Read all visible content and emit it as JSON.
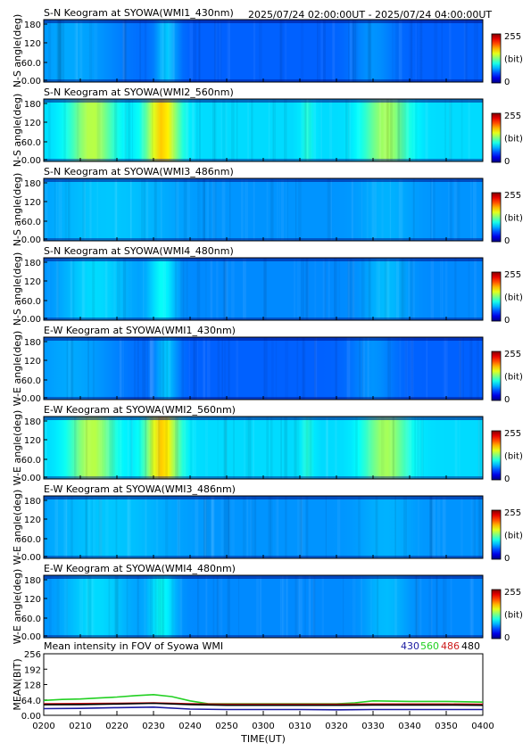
{
  "header": {
    "time_range": "2025/07/24 02:00:00UT - 2025/07/24 04:00:00UT"
  },
  "colorbar": {
    "max_label": "255",
    "unit_label": "(bit)",
    "min_label": "0"
  },
  "keograms": [
    {
      "title": "S-N Keogram at SYOWA(WMI1_430nm)",
      "ylabel": "N-S angle(deg)",
      "channel": "430",
      "yticks": [
        "180",
        "120",
        "60.0",
        "0.00"
      ],
      "base_level": 0.22,
      "bursts": [
        [
          0.06,
          0.3,
          0.07
        ],
        [
          0.28,
          0.06,
          0.1
        ],
        [
          0.75,
          0.12,
          0.05
        ]
      ]
    },
    {
      "title": "S-N Keogram at SYOWA(WMI2_560nm)",
      "ylabel": "N-S angle(deg)",
      "channel": "560",
      "yticks": [
        "180",
        "120",
        "60.0",
        "0.00"
      ],
      "base_level": 0.34,
      "bursts": [
        [
          0.11,
          0.12,
          0.22
        ],
        [
          0.27,
          0.09,
          0.34
        ],
        [
          0.78,
          0.12,
          0.2
        ],
        [
          0.6,
          0.03,
          0.07
        ]
      ]
    },
    {
      "title": "S-N Keogram at SYOWA(WMI3_486nm)",
      "ylabel": "N-S angle(deg)",
      "channel": "486",
      "yticks": [
        "180",
        "120",
        "60.0",
        "0.00"
      ],
      "base_level": 0.27,
      "bursts": [
        [
          0.15,
          0.35,
          0.05
        ],
        [
          0.78,
          0.15,
          0.03
        ]
      ]
    },
    {
      "title": "S-N Keogram at SYOWA(WMI4_480nm)",
      "ylabel": "N-S angle(deg)",
      "channel": "480",
      "yticks": [
        "180",
        "120",
        "60.0",
        "0.00"
      ],
      "base_level": 0.26,
      "bursts": [
        [
          0.12,
          0.2,
          0.08
        ],
        [
          0.27,
          0.07,
          0.12
        ],
        [
          0.78,
          0.12,
          0.05
        ]
      ]
    },
    {
      "title": "E-W Keogram at SYOWA(WMI1_430nm)",
      "ylabel": "W-E angle(deg)",
      "channel": "430",
      "yticks": [
        "180",
        "120",
        "60.0",
        "0.00"
      ],
      "base_level": 0.22,
      "bursts": [
        [
          0.06,
          0.3,
          0.07
        ],
        [
          0.28,
          0.06,
          0.1
        ],
        [
          0.75,
          0.12,
          0.05
        ]
      ]
    },
    {
      "title": "E-W Keogram at SYOWA(WMI2_560nm)",
      "ylabel": "W-E angle(deg)",
      "channel": "560",
      "yticks": [
        "180",
        "120",
        "60.0",
        "0.00"
      ],
      "base_level": 0.34,
      "bursts": [
        [
          0.11,
          0.12,
          0.22
        ],
        [
          0.27,
          0.09,
          0.34
        ],
        [
          0.78,
          0.12,
          0.2
        ],
        [
          0.6,
          0.03,
          0.07
        ]
      ]
    },
    {
      "title": "E-W Keogram at SYOWA(WMI3_486nm)",
      "ylabel": "W-E angle(deg)",
      "channel": "486",
      "yticks": [
        "180",
        "120",
        "60.0",
        "0.00"
      ],
      "base_level": 0.27,
      "bursts": [
        [
          0.15,
          0.35,
          0.05
        ],
        [
          0.78,
          0.15,
          0.03
        ]
      ]
    },
    {
      "title": "E-W Keogram at SYOWA(WMI4_480nm)",
      "ylabel": "W-E angle(deg)",
      "channel": "480",
      "yticks": [
        "180",
        "120",
        "60.0",
        "0.00"
      ],
      "base_level": 0.26,
      "bursts": [
        [
          0.12,
          0.2,
          0.08
        ],
        [
          0.27,
          0.07,
          0.12
        ],
        [
          0.78,
          0.12,
          0.05
        ]
      ]
    }
  ],
  "chart_data": {
    "type": "line",
    "title": "Mean intensity in FOV of Syowa WMI",
    "xlabel": "TIME(UT)",
    "ylabel": "MEAN(BIT)",
    "x_ticks": [
      "0200",
      "0210",
      "0220",
      "0230",
      "0240",
      "0250",
      "0300",
      "0310",
      "0320",
      "0330",
      "0340",
      "0350",
      "0400"
    ],
    "y_ticks": [
      "256",
      "192",
      "128",
      "64.0",
      "0.00"
    ],
    "ylim": [
      0,
      256
    ],
    "xlim_minutes_after_0200": [
      0,
      120
    ],
    "series": [
      {
        "name": "430",
        "color": "#1a1aa0",
        "x": [
          0,
          10,
          20,
          30,
          40,
          50,
          60,
          70,
          80,
          90,
          100,
          110,
          120
        ],
        "y": [
          28,
          29,
          32,
          34,
          26,
          24,
          24,
          24,
          23,
          24,
          24,
          24,
          24
        ]
      },
      {
        "name": "560",
        "color": "#22d022",
        "x": [
          0,
          5,
          10,
          15,
          20,
          25,
          30,
          35,
          40,
          45,
          50,
          60,
          70,
          80,
          85,
          90,
          100,
          110,
          120
        ],
        "y": [
          62,
          66,
          68,
          72,
          76,
          82,
          86,
          78,
          60,
          48,
          48,
          48,
          48,
          48,
          52,
          60,
          58,
          58,
          55
        ]
      },
      {
        "name": "486",
        "color": "#cc1a1a",
        "x": [
          0,
          10,
          20,
          30,
          40,
          50,
          60,
          70,
          80,
          90,
          100,
          110,
          120
        ],
        "y": [
          48,
          49,
          50,
          52,
          48,
          46,
          46,
          46,
          46,
          47,
          47,
          47,
          46
        ]
      },
      {
        "name": "480",
        "color": "#000000",
        "x": [
          0,
          10,
          20,
          30,
          40,
          50,
          60,
          70,
          80,
          90,
          100,
          110,
          120
        ],
        "y": [
          44,
          45,
          47,
          50,
          45,
          42,
          42,
          42,
          42,
          43,
          43,
          43,
          42
        ]
      }
    ],
    "legend": "top-right"
  }
}
